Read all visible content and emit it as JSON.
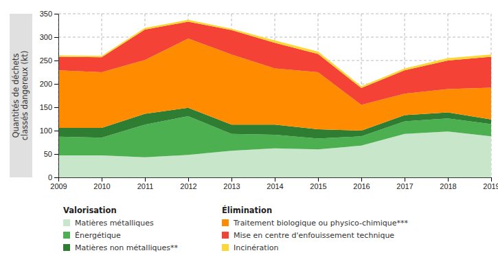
{
  "chart_data": {
    "type": "area",
    "stacked": true,
    "grid": true,
    "ylabel": [
      "Quantités de déchets",
      "classés dangereux (kt)"
    ],
    "x": [
      2009,
      2010,
      2011,
      2012,
      2013,
      2014,
      2015,
      2016,
      2017,
      2018,
      2019
    ],
    "xlim": [
      2009,
      2019
    ],
    "xticks": [
      2009,
      2010,
      2011,
      2012,
      2013,
      2014,
      2015,
      2016,
      2017,
      2018,
      2019
    ],
    "ylim": [
      0,
      350
    ],
    "yticks": [
      0,
      50,
      100,
      150,
      200,
      250,
      300,
      350
    ],
    "series": [
      {
        "name": "Matières métalliques",
        "group": "Valorisation",
        "color": "#c8e6c9",
        "values": [
          47,
          47,
          43,
          48,
          57,
          62,
          60,
          68,
          93,
          98,
          88
        ]
      },
      {
        "name": "Énergétique",
        "group": "Valorisation",
        "color": "#4caf50",
        "values": [
          40,
          38,
          70,
          83,
          36,
          29,
          23,
          20,
          27,
          28,
          26
        ]
      },
      {
        "name": "Matières non métalliques**",
        "group": "Valorisation",
        "color": "#2e7d32",
        "values": [
          19,
          21,
          23,
          18,
          20,
          22,
          20,
          12,
          13,
          13,
          10
        ]
      },
      {
        "name": "Traitement biologique ou physico-chimique***",
        "group": "Élimination",
        "color": "#ff8c00",
        "values": [
          123,
          119,
          115,
          148,
          150,
          120,
          122,
          55,
          46,
          50,
          68
        ]
      },
      {
        "name": "Mise en centre d'enfouissement technique",
        "group": "Élimination",
        "color": "#f44336",
        "values": [
          29,
          32,
          65,
          36,
          52,
          55,
          39,
          36,
          50,
          61,
          66
        ]
      },
      {
        "name": "Incinération",
        "group": "Élimination",
        "color": "#fdd835",
        "values": [
          3,
          3,
          4,
          4,
          3,
          5,
          5,
          4,
          4,
          5,
          5
        ]
      }
    ]
  }
}
